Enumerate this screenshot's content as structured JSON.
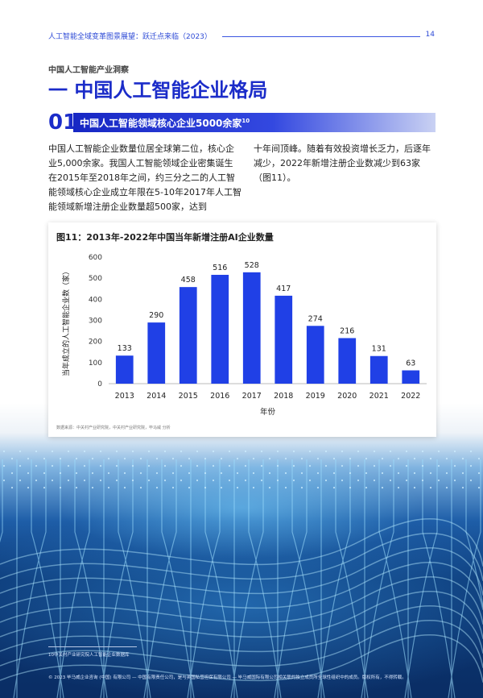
{
  "header": {
    "title": "人工智能全域变革图景展望：跃迁点来临（2023）",
    "page_number": "14"
  },
  "kicker": "中国人工智能产业洞察",
  "title": "一 中国人工智能企业格局",
  "section": {
    "number": "01",
    "title": "中国人工智能领域核心企业5000余家",
    "superscript": "10"
  },
  "body": {
    "col1": "中国人工智能企业数量位居全球第二位，核心企业5,000余家。我国人工智能领域企业密集诞生在2015年至2018年之间，约三分之二的人工智能领域核心企业成立年限在5-10年2017年人工智能领域新增注册企业数量超500家，达到",
    "col2": "十年间顶峰。随着有效投资增长乏力，后逐年减少，2022年新增注册企业数减少到63家（图11）。"
  },
  "chart_data": {
    "type": "bar",
    "title": "图11：2013年-2022年中国当年新增注册AI企业数量",
    "categories": [
      "2013",
      "2014",
      "2015",
      "2016",
      "2017",
      "2018",
      "2019",
      "2020",
      "2021",
      "2022"
    ],
    "values": [
      133,
      290,
      458,
      516,
      528,
      417,
      274,
      216,
      131,
      63
    ],
    "xlabel": "年份",
    "ylabel": "当年成立的人工智能企业数（家）",
    "ylim": [
      0,
      600
    ],
    "yticks": [
      0,
      100,
      200,
      300,
      400,
      500,
      600
    ],
    "grid": false,
    "bar_color": "#2040e6",
    "source": "数据来源：中关村产业研究院，中关村产业研究院，毕马威 分析"
  },
  "footnote": "10中关村产业研究院人工智能企业数据库",
  "copyright": "© 2023 毕马威企业咨询 (中国) 有限公司 — 中国有限责任公司，是与英国私营担保有限公司 — 毕马威国际有限公司相关联的独立成员所全球性组织中的成员。版权所有，不得转载。"
}
